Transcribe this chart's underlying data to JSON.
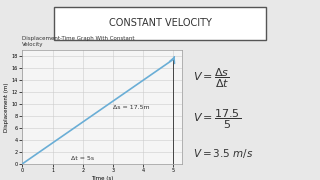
{
  "bg_color": "#e8e8e8",
  "title_box_text": "CONSTANT VELOCITY",
  "title_box_color": "#ffffff",
  "title_box_border": "#555555",
  "title_text_color": "#333333",
  "graph_title": "Displacement-Time Graph With Constant\nVelocity",
  "graph_bg": "#f5f5f5",
  "graph_border": "#bbbbbb",
  "line_color": "#6aaed6",
  "line_x": [
    0,
    5
  ],
  "line_y": [
    0,
    17.5
  ],
  "xlabel": "Time (s)",
  "ylabel": "Displacement (m)",
  "yticks": [
    0,
    2,
    4,
    6,
    8,
    10,
    12,
    14,
    16,
    18
  ],
  "xticks": [
    0,
    1,
    2,
    3,
    4,
    5
  ],
  "xlim": [
    0,
    5.3
  ],
  "ylim": [
    0,
    19
  ],
  "delta_s_label": "Δs = 17.5m",
  "delta_t_label": "Δt = 5s",
  "eq_color": "#333333"
}
